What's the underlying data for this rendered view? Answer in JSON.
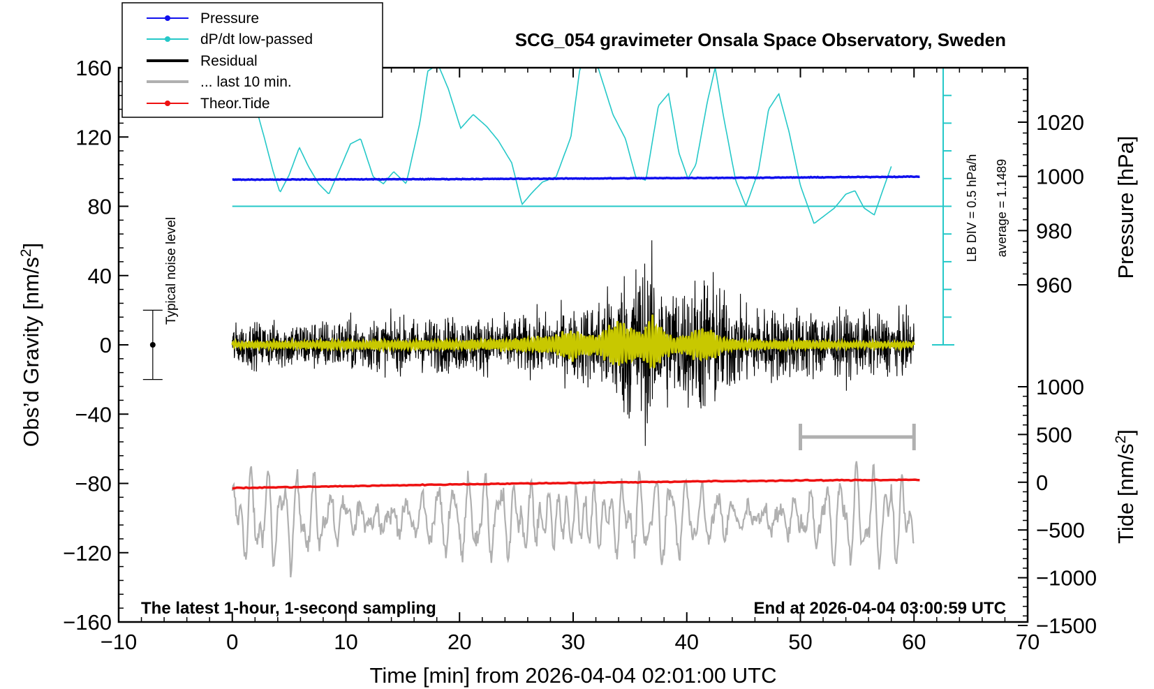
{
  "chart_data": {
    "type": "line",
    "title": "SCG_054 gravimeter Onsala Space Observatory, Sweden",
    "xlabel": "Time [min] from 2026-04-04 02:01:00 UTC",
    "ylabel_left": "Obs’d Gravity [nm/s²]",
    "ylabel_pressure": "Pressure [hPa]",
    "ylabel_tide": "Tide [nm/s²]",
    "xlim": [
      -10,
      70
    ],
    "ylim": [
      -160,
      160
    ],
    "x_ticks": [
      "−10",
      "0",
      "10",
      "20",
      "30",
      "40",
      "50",
      "60",
      "70"
    ],
    "x_tick_values": [
      -10,
      0,
      10,
      20,
      30,
      40,
      50,
      60,
      70
    ],
    "y_ticks": [
      "160",
      "120",
      "80",
      "40",
      "0",
      "−40",
      "−80",
      "−120",
      "−160"
    ],
    "y_tick_values": [
      160,
      120,
      80,
      40,
      0,
      -40,
      -80,
      -120,
      -160
    ],
    "pressure_ticks": [
      "1020",
      "1000",
      "980",
      "960"
    ],
    "pressure_tick_values": [
      1020,
      1000,
      980,
      960
    ],
    "pressure_range": [
      960,
      1040
    ],
    "tide_ticks": [
      "1000",
      "500",
      "0",
      "−500",
      "−1000",
      "−1500"
    ],
    "tide_tick_values": [
      1000,
      500,
      0,
      -500,
      -1000,
      -1500
    ],
    "tide_range": [
      -1500,
      1500
    ],
    "legend": [
      "Pressure",
      "dP/dt low-passed",
      "Residual",
      "... last 10 min.",
      "Theor.Tide"
    ],
    "legend_position": "top-left",
    "noise_label": "Typical noise level",
    "noise_level": [
      -20,
      20
    ],
    "noise_x": -7,
    "lb_div_label": "LB DIV = 0.5 hPa/h",
    "average_label": "average = 1.1489",
    "dpdt_baseline": 80,
    "bottom_left_text": "The latest 1-hour, 1-second sampling",
    "bottom_right_text": "End at 2026-04-04 03:00:59 UTC",
    "last10_interval": [
      50,
      60
    ],
    "series": [
      {
        "name": "Pressure",
        "color": "#1010ee",
        "x": [
          0,
          10,
          20,
          30,
          40,
          50,
          60
        ],
        "values": [
          998.8,
          998.9,
          999.0,
          999.2,
          999.4,
          999.6,
          999.9
        ]
      },
      {
        "name": "dP/dt low-passed",
        "color": "#25c8c8",
        "x": [
          2,
          2.8,
          3.6,
          4.2,
          5.0,
          5.9,
          6.7,
          7.6,
          8.5,
          9.5,
          10.4,
          11.3,
          12.4,
          13.3,
          14.2,
          15.3,
          16.5,
          17.2,
          18.1,
          19.0,
          20.1,
          21.2,
          22.4,
          23.4,
          24.6,
          25.5,
          26.4,
          27.3,
          28.5,
          29.8,
          30.6,
          31.3,
          32.2,
          33.5,
          34.6,
          35.5,
          36.4,
          37.5,
          38.4,
          39.3,
          40.1,
          40.8,
          41.8,
          42.5,
          43.2,
          44.3,
          45.2,
          46.3,
          47.2,
          48.1,
          49.0,
          50.0,
          51.2,
          52.2,
          53.0,
          54.0,
          54.8,
          55.6,
          56.5,
          57.4,
          58.0
        ],
        "values": [
          139,
          120,
          100,
          88,
          98,
          114,
          103,
          93,
          87,
          102,
          116,
          119,
          97,
          93,
          100,
          93,
          128,
          158,
          162,
          148,
          125,
          133,
          126,
          118,
          105,
          81,
          88,
          94,
          97,
          120,
          160,
          162,
          160,
          133,
          119,
          97,
          95,
          138,
          145,
          111,
          96,
          104,
          140,
          160,
          133,
          95,
          80,
          100,
          136,
          145,
          123,
          92,
          70,
          75,
          79,
          87,
          89,
          79,
          75,
          92,
          103
        ]
      },
      {
        "name": "Residual",
        "color": "#000000",
        "x": [
          0,
          5,
          10,
          15,
          20,
          25,
          30,
          32,
          34,
          35,
          36,
          37,
          38,
          40,
          41,
          42,
          43,
          45,
          50,
          55,
          60
        ],
        "envelope": [
          12,
          14,
          15,
          15,
          16,
          16,
          20,
          26,
          38,
          46,
          50,
          46,
          36,
          34,
          40,
          44,
          32,
          22,
          20,
          18,
          16
        ]
      },
      {
        "name": "low-passed residual",
        "color": "#c8c800",
        "x": [
          0,
          10,
          20,
          25,
          28,
          30,
          32,
          33,
          34,
          35,
          36,
          37,
          38,
          39,
          40,
          41,
          42,
          43,
          44,
          46,
          50,
          55,
          60
        ],
        "envelope": [
          2,
          3,
          3,
          4,
          6,
          11,
          6,
          12,
          17,
          13,
          10,
          19,
          10,
          5,
          7,
          14,
          11,
          6,
          4,
          3,
          3,
          2,
          2
        ]
      },
      {
        "name": "... last 10 min.",
        "color": "#b0b0b0",
        "x": [
          0,
          60
        ],
        "baseline": -100,
        "amplitude": 30
      },
      {
        "name": "Theor.Tide",
        "color": "#ee1111",
        "x": [
          0,
          10,
          20,
          30,
          40,
          50,
          60
        ],
        "values": [
          -82.7,
          -81.6,
          -80.5,
          -79.7,
          -78.9,
          -78.3,
          -77.9
        ]
      }
    ]
  }
}
